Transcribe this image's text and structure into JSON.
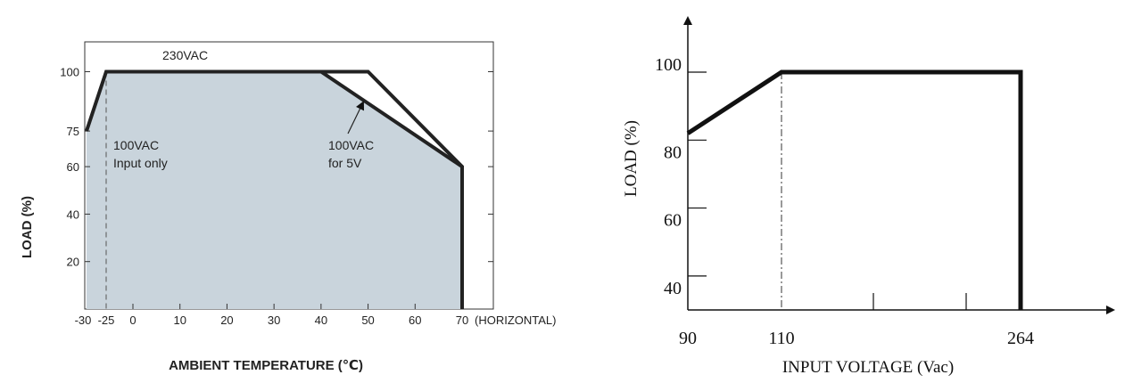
{
  "chart_data": [
    {
      "type": "line",
      "xlabel": "AMBIENT TEMPERATURE (℃)",
      "ylabel": "LOAD (%)",
      "x_ticks": [
        -30,
        -25,
        0,
        10,
        20,
        30,
        40,
        50,
        60,
        70
      ],
      "x_tick_labels": [
        "-30",
        "-25",
        "0",
        "10",
        "20",
        "30",
        "40",
        "50",
        "60",
        "70"
      ],
      "x_suffix": "(HORIZONTAL)",
      "y_ticks": [
        20,
        40,
        60,
        75,
        100
      ],
      "y_tick_labels": [
        "20",
        "40",
        "60",
        "75",
        "100"
      ],
      "xlim": [
        -30,
        80
      ],
      "ylim": [
        0,
        113
      ],
      "grid": false,
      "fill_color": "#c9d4dc",
      "series": [
        {
          "name": "230VAC",
          "x": [
            -30,
            -25,
            50,
            70,
            70
          ],
          "y": [
            75,
            100,
            100,
            60,
            0
          ]
        },
        {
          "name": "100VAC for 5V",
          "x": [
            40,
            70
          ],
          "y": [
            100,
            60
          ]
        }
      ],
      "annotations": {
        "label_230": "230VAC",
        "label_100_input_line1": "100VAC",
        "label_100_input_line2": "Input only",
        "label_5v_line1": "100VAC",
        "label_5v_line2": "for 5V"
      },
      "reference_x": -25
    },
    {
      "type": "line",
      "xlabel": "INPUT VOLTAGE (Vac)",
      "ylabel": "LOAD (%)",
      "x_tick_labels": [
        "90",
        "110",
        "264"
      ],
      "x_ticks_labeled": [
        90,
        110,
        264
      ],
      "y_ticks": [
        40,
        60,
        80,
        100
      ],
      "y_tick_labels": [
        "40",
        "60",
        "80",
        "100"
      ],
      "grid": false,
      "series": [
        {
          "x": [
            90,
            110,
            264,
            264
          ],
          "y": [
            82,
            100,
            100,
            30
          ]
        }
      ],
      "reference_x": 110
    }
  ]
}
